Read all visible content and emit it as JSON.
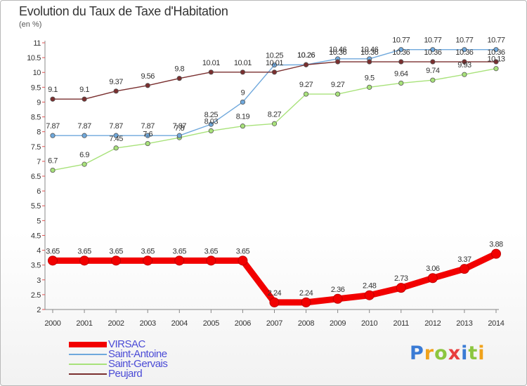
{
  "header": {
    "title": "Evolution du Taux de Taxe d'Habitation",
    "unit": "(en %)"
  },
  "logo": {
    "text": "Proxiti",
    "letter_colors": [
      "#3a7bd5",
      "#f0a21b",
      "#8cc63f",
      "#e83e3e",
      "#3a7bd5",
      "#8cc63f",
      "#f0a21b"
    ]
  },
  "chart_data": {
    "type": "line",
    "title": "Evolution du Taux de Taxe d'Habitation",
    "ylabel": "(en %)",
    "xlabel": "",
    "x": [
      "2000",
      "2001",
      "2002",
      "2003",
      "2004",
      "2005",
      "2006",
      "2007",
      "2008",
      "2009",
      "2010",
      "2011",
      "2012",
      "2013",
      "2014"
    ],
    "ylim": [
      2,
      11
    ],
    "yticks": [
      "2",
      "2.5",
      "3",
      "3.5",
      "4",
      "4.5",
      "5",
      "5.5",
      "6",
      "6.5",
      "7",
      "7.5",
      "8",
      "8.5",
      "9",
      "9.5",
      "10",
      "10.5",
      "11"
    ],
    "grid": false,
    "legend_position": "bottom-left",
    "series": [
      {
        "name": "VIRSAC",
        "color": "#f20000",
        "values": [
          3.65,
          3.65,
          3.65,
          3.65,
          3.65,
          3.65,
          3.65,
          2.24,
          2.24,
          2.36,
          2.48,
          2.73,
          3.06,
          3.37,
          3.88
        ],
        "labels": [
          "3.65",
          "3.65",
          "3.65",
          "3.65",
          "3.65",
          "3.65",
          "3.65",
          "2.24",
          "2.24",
          "2.36",
          "2.48",
          "2.73",
          "3.06",
          "3.37",
          "3.88"
        ]
      },
      {
        "name": "Saint-Antoine",
        "color": "#6fa8dc",
        "values": [
          7.87,
          7.87,
          7.87,
          7.87,
          7.87,
          8.25,
          9,
          10.25,
          10.26,
          10.46,
          10.46,
          10.77,
          10.77,
          10.77,
          10.77
        ],
        "labels": [
          "7.87",
          "7.87",
          "7.87",
          "7.87",
          "7.87",
          "8.25",
          "9",
          "10.25",
          "10.26",
          "10.46",
          "10.46",
          "10.77",
          "10.77",
          "10.77",
          "10.77"
        ]
      },
      {
        "name": "Saint-Gervais",
        "color": "#a8e27a",
        "values": [
          6.7,
          6.9,
          7.45,
          7.6,
          7.8,
          8.03,
          8.19,
          8.27,
          9.27,
          9.27,
          9.5,
          9.64,
          9.74,
          9.93,
          10.13
        ],
        "labels": [
          "6.7",
          "6.9",
          "7.45",
          "7.6",
          "7.8",
          "8.03",
          "8.19",
          "8.27",
          "9.27",
          "9.27",
          "9.5",
          "9.64",
          "9.74",
          "9.93",
          "10.13"
        ]
      },
      {
        "name": "Peujard",
        "color": "#7a2f2f",
        "values": [
          9.1,
          9.1,
          9.37,
          9.56,
          9.8,
          10.01,
          10.01,
          10.01,
          10.26,
          10.36,
          10.36,
          10.36,
          10.36,
          10.36,
          10.36
        ],
        "labels": [
          "9.1",
          "9.1",
          "9.37",
          "9.56",
          "9.8",
          "10.01",
          "10.01",
          "10.01",
          "10.26",
          "10.36",
          "10.36",
          "10.36",
          "10.36",
          "10.36",
          "10.36"
        ]
      }
    ]
  }
}
